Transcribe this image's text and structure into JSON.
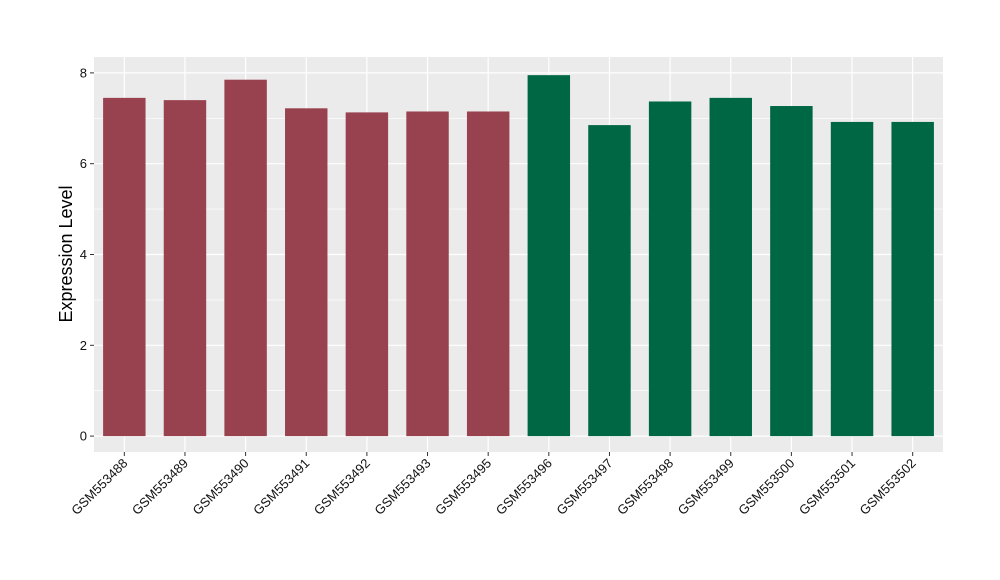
{
  "chart_data": {
    "type": "bar",
    "title": "",
    "xlabel": "",
    "ylabel": "Expression Level",
    "ylim": [
      -0.35,
      8.35
    ],
    "yticks": [
      0,
      2,
      4,
      6,
      8
    ],
    "grid": true,
    "categories": [
      "GSM553488",
      "GSM553489",
      "GSM553490",
      "GSM553491",
      "GSM553492",
      "GSM553493",
      "GSM553495",
      "GSM553496",
      "GSM553497",
      "GSM553498",
      "GSM553499",
      "GSM553500",
      "GSM553501",
      "GSM553502"
    ],
    "values": [
      7.45,
      7.4,
      7.85,
      7.22,
      7.13,
      7.15,
      7.15,
      7.95,
      6.85,
      7.37,
      7.45,
      7.27,
      6.92,
      6.92
    ],
    "groups": [
      {
        "color": "#99424F",
        "categories": [
          "GSM553488",
          "GSM553489",
          "GSM553490",
          "GSM553491",
          "GSM553492",
          "GSM553493",
          "GSM553495"
        ]
      },
      {
        "color": "#006744",
        "categories": [
          "GSM553496",
          "GSM553497",
          "GSM553498",
          "GSM553499",
          "GSM553500",
          "GSM553501",
          "GSM553502"
        ]
      }
    ],
    "panel_background": "#EBEBEB",
    "gridline_color": "#FFFFFF"
  }
}
